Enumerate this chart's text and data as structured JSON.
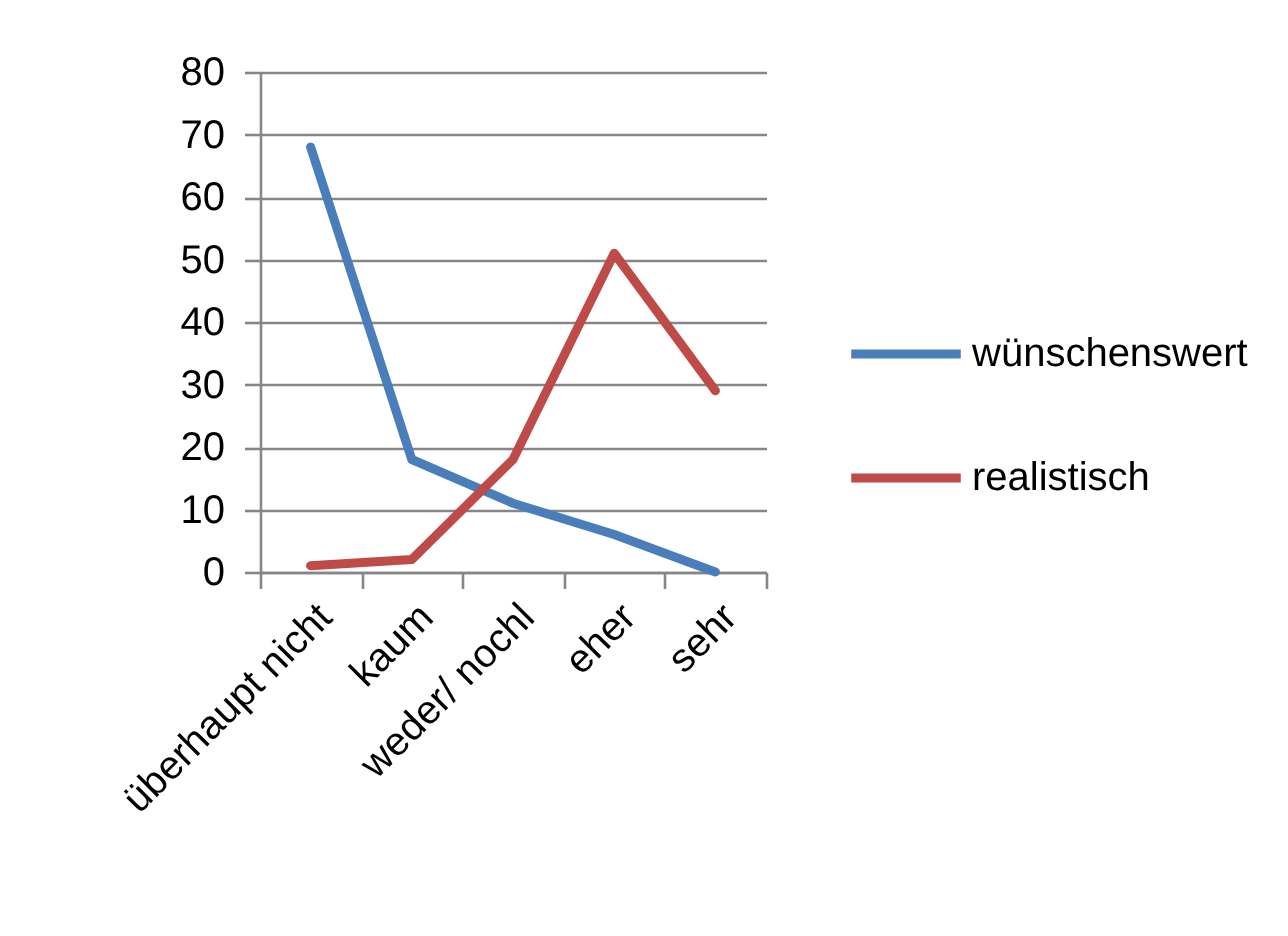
{
  "chart_data": {
    "type": "line",
    "categories": [
      "überhaupt nicht",
      "kaum",
      "weder/ nochl",
      "eher",
      "sehr"
    ],
    "series": [
      {
        "name": "wünschenswert",
        "color": "#4a7ebb",
        "values": [
          68,
          18,
          11,
          6,
          0
        ]
      },
      {
        "name": "realistisch",
        "color": "#be4b48",
        "values": [
          1,
          2,
          18,
          51,
          29
        ]
      }
    ],
    "ylim": [
      0,
      80
    ],
    "yticks": [
      0,
      10,
      20,
      30,
      40,
      50,
      60,
      70,
      80
    ],
    "grid": "y",
    "legend": "right",
    "marker": "none",
    "line_style": "solid"
  }
}
